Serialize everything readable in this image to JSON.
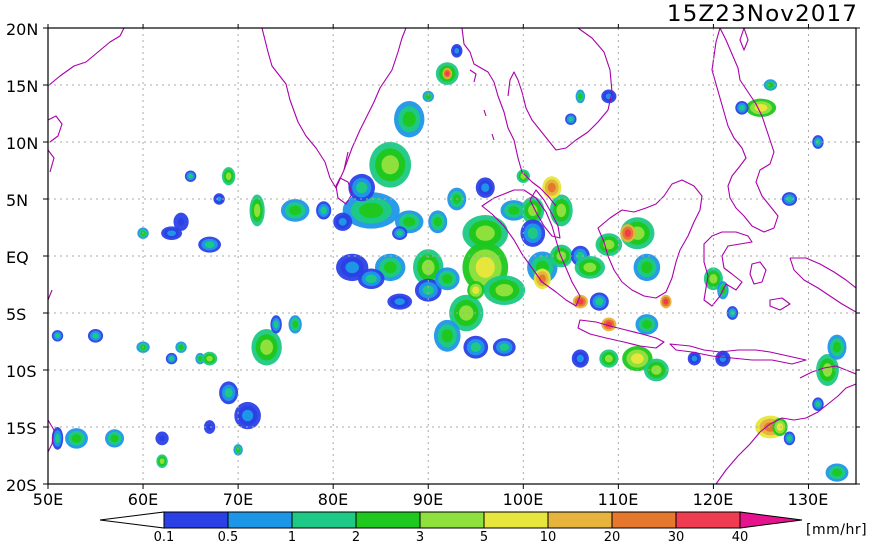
{
  "title": "15Z23Nov2017",
  "lat_labels": [
    "20N",
    "15N",
    "10N",
    "5N",
    "EQ",
    "5S",
    "10S",
    "15S",
    "20S"
  ],
  "lon_labels": [
    "50E",
    "60E",
    "70E",
    "80E",
    "90E",
    "100E",
    "110E",
    "120E",
    "130E"
  ],
  "colorbar": {
    "ticks": [
      "0.1",
      "0.5",
      "1",
      "2",
      "3",
      "5",
      "10",
      "20",
      "30",
      "40"
    ],
    "colors": [
      "#2b41e6",
      "#1e96e8",
      "#1ec885",
      "#1ec81e",
      "#8ee03c",
      "#e6e63c",
      "#e6b43c",
      "#e6782d",
      "#f03c50",
      "#e6148c"
    ],
    "under_color": "#ffffff",
    "units": "[mm/hr]"
  },
  "coastline_color": "#aa00aa",
  "grid": true,
  "chart_data": {
    "type": "heatmap",
    "title": "15Z23Nov2017",
    "x_range": [
      50,
      135
    ],
    "y_range": [
      -20,
      20
    ],
    "xlabel": "",
    "ylabel": "",
    "units": "mm/hr",
    "levels": [
      0.1,
      0.5,
      1,
      2,
      3,
      5,
      10,
      20,
      30,
      40
    ]
  }
}
